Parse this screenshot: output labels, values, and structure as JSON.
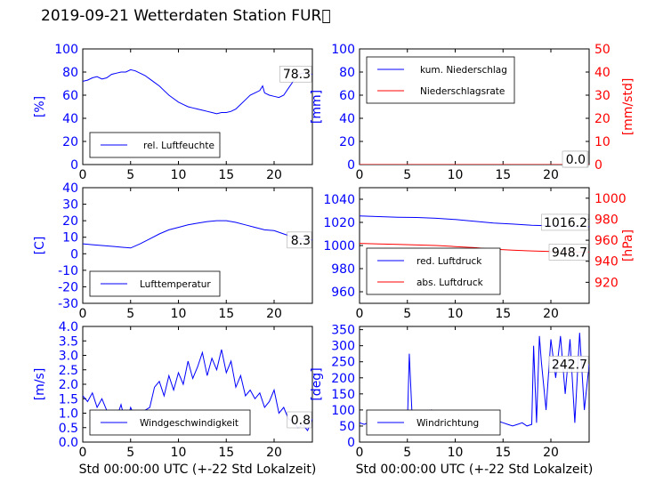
{
  "figure": {
    "title": "2019-09-21 Wetterdaten Station FUR\u0000"
  },
  "colors": {
    "blue": "#0000ff",
    "red": "#ff0000",
    "black": "#000000"
  },
  "chart_data": [
    {
      "id": "humidity",
      "type": "line",
      "xlim": [
        0,
        24
      ],
      "xticks": [
        0,
        5,
        10,
        15,
        20
      ],
      "ylabel": "[%]",
      "ylim": [
        0,
        100
      ],
      "yticks": [
        0,
        20,
        40,
        60,
        80,
        100
      ],
      "legend": "lower-left",
      "annotation": "78.3",
      "series": [
        {
          "name": "rel. Luftfeuchte",
          "color": "#0000ff",
          "x": [
            0,
            0.5,
            1,
            1.5,
            2,
            2.5,
            3,
            3.5,
            4,
            4.5,
            5,
            5.5,
            6,
            6.5,
            7,
            7.5,
            8,
            8.5,
            9,
            9.5,
            10,
            10.5,
            11,
            11.5,
            12,
            12.5,
            13,
            13.5,
            14,
            14.5,
            15,
            15.5,
            16,
            16.5,
            17,
            17.5,
            18,
            18.5,
            18.8,
            19,
            19.5,
            20,
            20.5,
            21,
            21.5,
            22,
            22.5,
            23,
            23.5,
            24
          ],
          "y": [
            72,
            73,
            75,
            76,
            74,
            75,
            78,
            79,
            80,
            80,
            82,
            81,
            79,
            77,
            74,
            71,
            68,
            64,
            60,
            57,
            54,
            52,
            50,
            49,
            48,
            47,
            46,
            45,
            44,
            45,
            45,
            46,
            48,
            52,
            56,
            60,
            62,
            64,
            68,
            62,
            60,
            59,
            58,
            60,
            66,
            72,
            78,
            79,
            79,
            78
          ]
        }
      ]
    },
    {
      "id": "precip",
      "type": "line",
      "xlim": [
        0,
        24
      ],
      "xticks": [
        0,
        5,
        10,
        15,
        20
      ],
      "ylabel": "[mm]",
      "ylim": [
        0,
        100
      ],
      "yticks": [
        0,
        20,
        40,
        60,
        80,
        100
      ],
      "y2label": "[mm/std]",
      "y2lim": [
        0,
        50
      ],
      "y2ticks": [
        0,
        10,
        20,
        30,
        40,
        50
      ],
      "legend": "top-left",
      "annotation": "0.0",
      "annotation2": "0.0",
      "series": [
        {
          "name": "kum. Niederschlag",
          "color": "#0000ff",
          "axis": "left",
          "x": [
            0,
            24
          ],
          "y": [
            0,
            0
          ]
        },
        {
          "name": "Niederschlagsrate",
          "color": "#ff0000",
          "axis": "right",
          "x": [
            0,
            24
          ],
          "y": [
            0,
            0
          ]
        }
      ]
    },
    {
      "id": "temp",
      "type": "line",
      "xlim": [
        0,
        24
      ],
      "xticks": [
        0,
        5,
        10,
        15,
        20
      ],
      "ylabel": "[C]",
      "ylim": [
        -30,
        40
      ],
      "yticks": [
        -30,
        -20,
        -10,
        0,
        10,
        20,
        30,
        40
      ],
      "legend": "lower-left",
      "annotation": "8.3",
      "series": [
        {
          "name": "Lufttemperatur",
          "color": "#0000ff",
          "x": [
            0,
            1,
            2,
            3,
            4,
            5,
            6,
            7,
            8,
            9,
            10,
            11,
            12,
            13,
            14,
            15,
            16,
            17,
            18,
            19,
            20,
            21,
            22,
            23,
            24
          ],
          "y": [
            6,
            5.5,
            5,
            4.5,
            4,
            3.5,
            6,
            9,
            12,
            14.5,
            16,
            17.5,
            18.5,
            19.5,
            20,
            20,
            19,
            17.5,
            16,
            14.5,
            14,
            12,
            10,
            9,
            8.3
          ]
        }
      ]
    },
    {
      "id": "pressure",
      "type": "line",
      "xlim": [
        0,
        24
      ],
      "xticks": [
        0,
        5,
        10,
        15,
        20
      ],
      "ylim": [
        950,
        1050
      ],
      "yticks": [
        960,
        980,
        1000,
        1020,
        1040
      ],
      "y2label": "[hPa]",
      "y2lim": [
        900,
        1010
      ],
      "y2ticks": [
        920,
        940,
        960,
        980,
        1000
      ],
      "legend": "lower-left",
      "annotation": "1016.2",
      "annotation2": "948.7",
      "series": [
        {
          "name": "red. Luftdruck",
          "color": "#0000ff",
          "axis": "left",
          "x": [
            0,
            2,
            4,
            6,
            8,
            10,
            12,
            14,
            16,
            18,
            20,
            22,
            24
          ],
          "y": [
            1025.5,
            1025,
            1024.5,
            1024.2,
            1023.5,
            1022.5,
            1021,
            1019.5,
            1018.5,
            1017.5,
            1017,
            1016.5,
            1016.2
          ]
        }
      ],
      "series2": [
        {
          "name": "abs. Luftdruck",
          "color": "#ff0000",
          "axis": "right",
          "x": [
            0,
            2,
            4,
            6,
            8,
            10,
            12,
            14,
            16,
            18,
            20,
            22,
            24
          ],
          "y": [
            957,
            956.5,
            956,
            955.5,
            955,
            954,
            953,
            951.5,
            950.5,
            949.8,
            949.3,
            948.9,
            948.7
          ]
        }
      ]
    },
    {
      "id": "wind",
      "type": "line",
      "xlabel": "Std 00:00:00 UTC (+-22 Std Lokalzeit)",
      "xlim": [
        0,
        24
      ],
      "xticks": [
        0,
        5,
        10,
        15,
        20
      ],
      "ylabel": "[m/s]",
      "ylim": [
        0,
        4
      ],
      "yticks": [
        0,
        0.5,
        1.0,
        1.5,
        2.0,
        2.5,
        3.0,
        3.5,
        4.0
      ],
      "legend": "lower-left",
      "annotation": "0.8",
      "series": [
        {
          "name": "Windgeschwindigkeit",
          "color": "#0000ff",
          "x": [
            0,
            0.5,
            1,
            1.5,
            2,
            2.5,
            3,
            3.5,
            4,
            4.5,
            5,
            5.5,
            6,
            6.5,
            7,
            7.5,
            8,
            8.5,
            9,
            9.5,
            10,
            10.5,
            11,
            11.5,
            12,
            12.5,
            13,
            13.5,
            14,
            14.5,
            15,
            15.5,
            16,
            16.5,
            17,
            17.5,
            18,
            18.5,
            19,
            19.5,
            20,
            20.5,
            21,
            21.5,
            22,
            22.5,
            23,
            23.5,
            24
          ],
          "y": [
            1.6,
            1.4,
            1.7,
            1.2,
            1.5,
            1.1,
            1.0,
            0.8,
            1.3,
            0.6,
            1.2,
            0.8,
            0.9,
            1.1,
            1.2,
            1.9,
            2.1,
            1.6,
            2.3,
            1.8,
            2.4,
            2.0,
            2.8,
            2.2,
            2.6,
            3.1,
            2.3,
            2.9,
            2.5,
            3.2,
            2.4,
            2.8,
            1.9,
            2.3,
            1.6,
            1.8,
            1.5,
            1.7,
            1.2,
            1.4,
            1.8,
            1.0,
            1.2,
            0.8,
            0.7,
            0.5,
            0.6,
            0.4,
            0.8
          ]
        }
      ]
    },
    {
      "id": "winddir",
      "type": "line",
      "xlabel": "Std 00:00:00 UTC (+-22 Std Lokalzeit)",
      "xlim": [
        0,
        24
      ],
      "xticks": [
        0,
        5,
        10,
        15,
        20
      ],
      "ylabel": "[deg]",
      "ylim": [
        0,
        360
      ],
      "yticks": [
        0,
        50,
        100,
        150,
        200,
        250,
        300,
        350
      ],
      "legend": "lower-left",
      "annotation": "242.7",
      "series": [
        {
          "name": "Windrichtung",
          "color": "#0000ff",
          "x": [
            0,
            0.5,
            1,
            1.5,
            2,
            2.5,
            3,
            3.5,
            4,
            4.5,
            5,
            5.2,
            5.5,
            6,
            6.5,
            7,
            7.5,
            8,
            8.5,
            9,
            9.5,
            10,
            10.5,
            11,
            11.5,
            12,
            12.5,
            13,
            13.5,
            14,
            14.5,
            15,
            15.5,
            16,
            16.5,
            17,
            17.5,
            18,
            18.2,
            18.5,
            18.8,
            19,
            19.5,
            20,
            20.5,
            21,
            21.5,
            22,
            22.5,
            23,
            23.5,
            24
          ],
          "y": [
            60,
            55,
            62,
            58,
            70,
            65,
            60,
            55,
            65,
            70,
            60,
            275,
            80,
            90,
            95,
            85,
            100,
            90,
            95,
            85,
            90,
            80,
            95,
            85,
            90,
            75,
            85,
            80,
            70,
            75,
            65,
            60,
            55,
            50,
            55,
            60,
            50,
            55,
            300,
            60,
            330,
            250,
            100,
            320,
            200,
            330,
            150,
            320,
            60,
            340,
            100,
            242.7
          ]
        }
      ]
    }
  ]
}
